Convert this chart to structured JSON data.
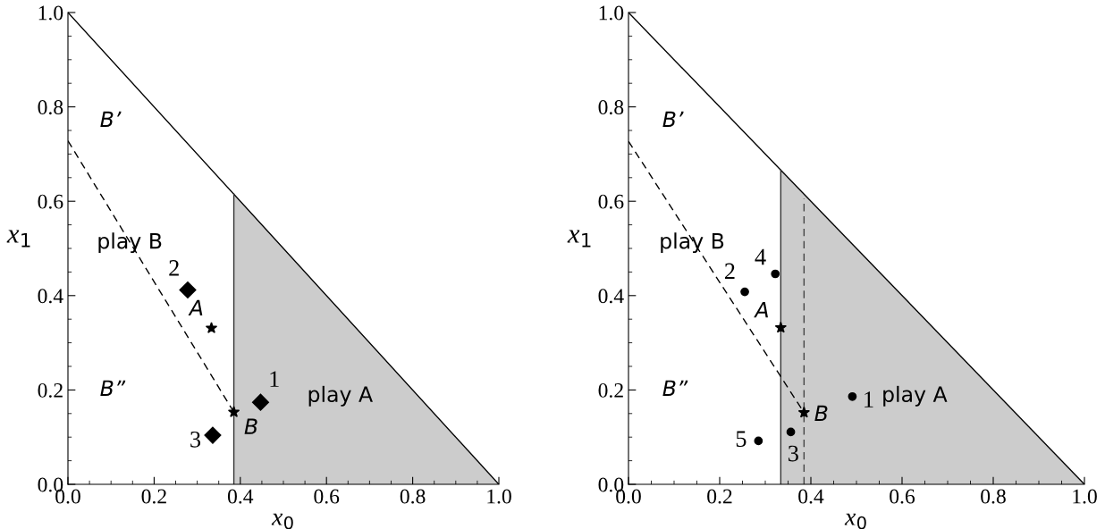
{
  "chart_data": [
    {
      "type": "line",
      "xlabel": "x$_{0}$",
      "ylabel": "x$_{1}$",
      "xlim": [
        0,
        1
      ],
      "ylim": [
        0,
        1
      ],
      "legend": false,
      "grid": false,
      "xticks": [
        {
          "value": 0,
          "label": "0.0"
        },
        {
          "value": 0.05,
          "label": null
        },
        {
          "value": 0.1,
          "label": null
        },
        {
          "value": 0.15,
          "label": null
        },
        {
          "value": 0.2,
          "label": "0.2"
        },
        {
          "value": 0.25,
          "label": null
        },
        {
          "value": 0.3,
          "label": null
        },
        {
          "value": 0.35,
          "label": null
        },
        {
          "value": 0.4,
          "label": "0.4"
        },
        {
          "value": 0.45,
          "label": null
        },
        {
          "value": 0.5,
          "label": null
        },
        {
          "value": 0.55,
          "label": null
        },
        {
          "value": 0.6,
          "label": "0.6"
        },
        {
          "value": 0.65,
          "label": null
        },
        {
          "value": 0.7,
          "label": null
        },
        {
          "value": 0.75,
          "label": null
        },
        {
          "value": 0.8,
          "label": "0.8"
        },
        {
          "value": 0.85,
          "label": null
        },
        {
          "value": 0.9,
          "label": null
        },
        {
          "value": 0.95,
          "label": null
        },
        {
          "value": 1,
          "label": "1.0"
        }
      ],
      "yticks": [
        {
          "value": 0,
          "label": "0.0"
        },
        {
          "value": 0.05,
          "label": null
        },
        {
          "value": 0.1,
          "label": null
        },
        {
          "value": 0.15,
          "label": null
        },
        {
          "value": 0.2,
          "label": "0.2"
        },
        {
          "value": 0.25,
          "label": null
        },
        {
          "value": 0.3,
          "label": null
        },
        {
          "value": 0.35,
          "label": null
        },
        {
          "value": 0.4,
          "label": "0.4"
        },
        {
          "value": 0.45,
          "label": null
        },
        {
          "value": 0.5,
          "label": null
        },
        {
          "value": 0.55,
          "label": null
        },
        {
          "value": 0.6,
          "label": "0.6"
        },
        {
          "value": 0.65,
          "label": null
        },
        {
          "value": 0.7,
          "label": null
        },
        {
          "value": 0.75,
          "label": null
        },
        {
          "value": 0.8,
          "label": "0.8"
        },
        {
          "value": 0.85,
          "label": null
        },
        {
          "value": 0.9,
          "label": null
        },
        {
          "value": 0.95,
          "label": null
        },
        {
          "value": 1,
          "label": "1.0"
        }
      ],
      "series": [
        {
          "type": "area",
          "color": "#cccccc",
          "x": [
            0.385,
            1
          ],
          "values": [
            0.615,
            0
          ]
        },
        {
          "color": "#000000",
          "line_style": "solid",
          "x": [
            0,
            1
          ],
          "values": [
            1,
            0
          ]
        },
        {
          "color": "#333333",
          "line_style": "solid",
          "x": [
            0.385,
            0.385
          ],
          "values": [
            0,
            0.615
          ]
        },
        {
          "color": "#000000",
          "line_style": "dashed",
          "x": [
            0,
            0.385
          ],
          "values": [
            0.728,
            0.153
          ]
        },
        {
          "type": "scatter",
          "color": "#000000",
          "marker": "star",
          "x": [
            0.333,
            0.385
          ],
          "values": [
            0.331,
            0.153
          ]
        },
        {
          "type": "scatter",
          "color": "#000000",
          "marker": "diamond",
          "x": [
            0.447,
            0.278,
            0.336
          ],
          "values": [
            0.174,
            0.412,
            0.104
          ]
        }
      ],
      "annotations": [
        "B’",
        "B”",
        "play B",
        "play A",
        {
          "text": "1",
          "x": 0.447,
          "y": 0.174
        },
        {
          "text": "2",
          "x": 0.278,
          "y": 0.412
        },
        {
          "text": "3",
          "x": 0.336,
          "y": 0.104
        },
        {
          "text": "A",
          "x": 0.333,
          "y": 0.331
        },
        {
          "text": "B",
          "x": 0.385,
          "y": 0.153
        }
      ]
    },
    {
      "type": "line",
      "xlabel": "x$_{0}$",
      "ylabel": "x$_{1}$",
      "xlim": [
        0,
        1
      ],
      "ylim": [
        0,
        1
      ],
      "legend": false,
      "grid": false,
      "xticks": [
        {
          "value": 0,
          "label": "0.0"
        },
        {
          "value": 0.05,
          "label": null
        },
        {
          "value": 0.1,
          "label": null
        },
        {
          "value": 0.15,
          "label": null
        },
        {
          "value": 0.2,
          "label": "0.2"
        },
        {
          "value": 0.25,
          "label": null
        },
        {
          "value": 0.3,
          "label": null
        },
        {
          "value": 0.35,
          "label": null
        },
        {
          "value": 0.4,
          "label": "0.4"
        },
        {
          "value": 0.45,
          "label": null
        },
        {
          "value": 0.5,
          "label": null
        },
        {
          "value": 0.55,
          "label": null
        },
        {
          "value": 0.6,
          "label": "0.6"
        },
        {
          "value": 0.65,
          "label": null
        },
        {
          "value": 0.7,
          "label": null
        },
        {
          "value": 0.75,
          "label": null
        },
        {
          "value": 0.8,
          "label": "0.8"
        },
        {
          "value": 0.85,
          "label": null
        },
        {
          "value": 0.9,
          "label": null
        },
        {
          "value": 0.95,
          "label": null
        },
        {
          "value": 1,
          "label": "1.0"
        }
      ],
      "yticks": [
        {
          "value": 0,
          "label": "0.0"
        },
        {
          "value": 0.05,
          "label": null
        },
        {
          "value": 0.1,
          "label": null
        },
        {
          "value": 0.15,
          "label": null
        },
        {
          "value": 0.2,
          "label": "0.2"
        },
        {
          "value": 0.25,
          "label": null
        },
        {
          "value": 0.3,
          "label": null
        },
        {
          "value": 0.35,
          "label": null
        },
        {
          "value": 0.4,
          "label": "0.4"
        },
        {
          "value": 0.45,
          "label": null
        },
        {
          "value": 0.5,
          "label": null
        },
        {
          "value": 0.55,
          "label": null
        },
        {
          "value": 0.6,
          "label": "0.6"
        },
        {
          "value": 0.65,
          "label": null
        },
        {
          "value": 0.7,
          "label": null
        },
        {
          "value": 0.75,
          "label": null
        },
        {
          "value": 0.8,
          "label": "0.8"
        },
        {
          "value": 0.85,
          "label": null
        },
        {
          "value": 0.9,
          "label": null
        },
        {
          "value": 0.95,
          "label": null
        },
        {
          "value": 1,
          "label": "1.0"
        }
      ],
      "series": [
        {
          "type": "area",
          "color": "#cccccc",
          "x": [
            0.334,
            1
          ],
          "values": [
            0.666,
            0
          ]
        },
        {
          "color": "#000000",
          "line_style": "solid",
          "x": [
            0,
            1
          ],
          "values": [
            1,
            0
          ]
        },
        {
          "color": "#333333",
          "line_style": "solid",
          "x": [
            0.334,
            0.334
          ],
          "values": [
            0,
            0.666
          ]
        },
        {
          "color": "#444444",
          "line_style": "dashed",
          "x": [
            0.385,
            0.385
          ],
          "values": [
            0,
            0.606
          ]
        },
        {
          "color": "#000000",
          "line_style": "dashed",
          "x": [
            0,
            0.385
          ],
          "values": [
            0.727,
            0.152
          ]
        },
        {
          "type": "scatter",
          "color": "#000000",
          "marker": "star",
          "x": [
            0.334,
            0.385
          ],
          "values": [
            0.332,
            0.152
          ]
        },
        {
          "type": "scatter",
          "color": "#000000",
          "marker": "circle",
          "x": [
            0.491,
            0.255,
            0.356,
            0.322,
            0.285
          ],
          "values": [
            0.186,
            0.408,
            0.111,
            0.446,
            0.092
          ]
        }
      ],
      "annotations": [
        "B’",
        "B”",
        "play B",
        "play A",
        {
          "text": "1",
          "x": 0.491,
          "y": 0.186
        },
        {
          "text": "2",
          "x": 0.255,
          "y": 0.408
        },
        {
          "text": "3",
          "x": 0.356,
          "y": 0.111
        },
        {
          "text": "4",
          "x": 0.322,
          "y": 0.446
        },
        {
          "text": "5",
          "x": 0.285,
          "y": 0.092
        },
        {
          "text": "A",
          "x": 0.334,
          "y": 0.332
        },
        {
          "text": "B",
          "x": 0.385,
          "y": 0.152
        }
      ]
    }
  ]
}
